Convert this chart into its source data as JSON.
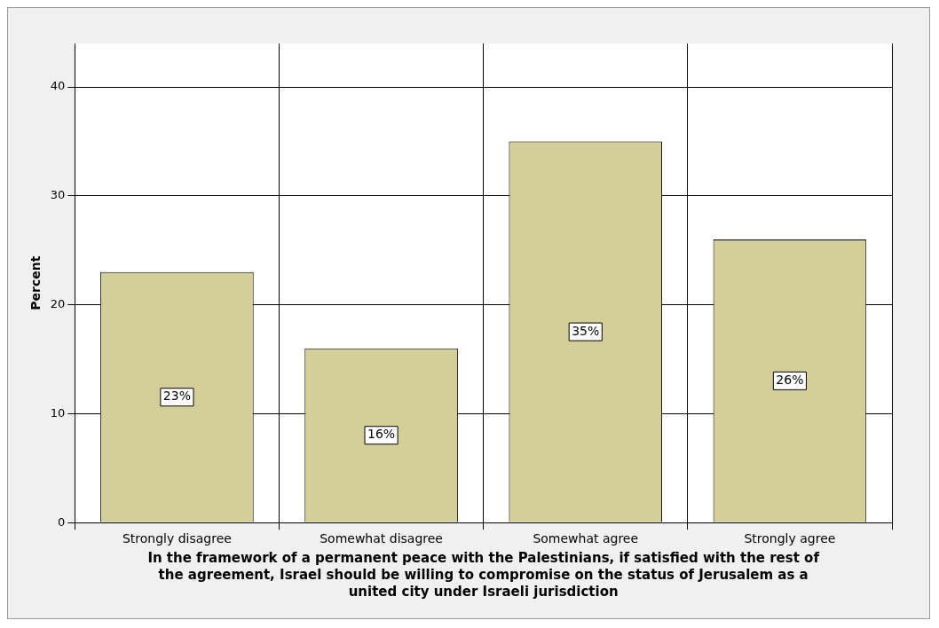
{
  "chart_data": {
    "type": "bar",
    "xlabel": "In the framework of a permanent peace with the Palestinians, if satisfied with the rest of the agreement, Israel should be willing to compromise on the status of Jerusalem as a united city under Israeli jurisdiction",
    "ylabel": "Percent",
    "categories": [
      "Strongly disagree",
      "Somewhat disagree",
      "Somewhat agree",
      "Strongly agree"
    ],
    "values": [
      23,
      16,
      35,
      26
    ],
    "value_labels": [
      "23%",
      "16%",
      "35%",
      "26%"
    ],
    "color": "#d4cf98",
    "ylim": [
      0,
      44
    ],
    "yticks": [
      0,
      10,
      20,
      30,
      40
    ],
    "grid": true,
    "legend": false
  }
}
